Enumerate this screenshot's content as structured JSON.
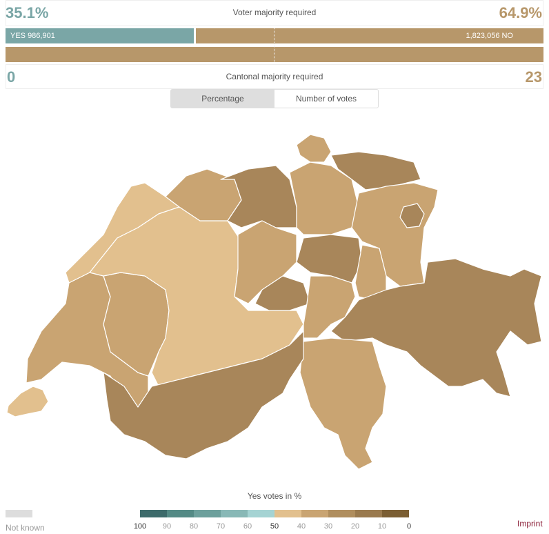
{
  "header": {
    "yes_percent": "35.1%",
    "no_percent": "64.9%",
    "voter_majority_label": "Voter majority required",
    "yes_votes_text": "YES 986,901",
    "no_votes_text": "1,823,056 NO",
    "yes_fraction": 0.351,
    "cantons_yes": "0",
    "cantons_no": "23",
    "cantonal_majority_label": "Cantonal majority required",
    "cantons_yes_fraction": 0.0
  },
  "toggle": {
    "percentage_label": "Percentage",
    "votes_label": "Number of votes",
    "active": "percentage"
  },
  "legend": {
    "title": "Yes votes in %",
    "not_known_label": "Not known",
    "ticks": [
      "100",
      "90",
      "80",
      "70",
      "60",
      "50",
      "40",
      "30",
      "20",
      "10",
      "0"
    ],
    "colors": [
      "#3d6b6b",
      "#548a85",
      "#6da09c",
      "#88b8b6",
      "#a5d3d3",
      "#e2c08e",
      "#c9a472",
      "#b08e5e",
      "#9a7a4e",
      "#7b5e33"
    ],
    "not_known_color": "#dddddd"
  },
  "colors": {
    "yes": "#7aa6a6",
    "no": "#b7976a",
    "map_light": "#e2c08e",
    "map_mid": "#c9a472",
    "map_dark": "#a8865a"
  },
  "imprint_label": "Imprint"
}
